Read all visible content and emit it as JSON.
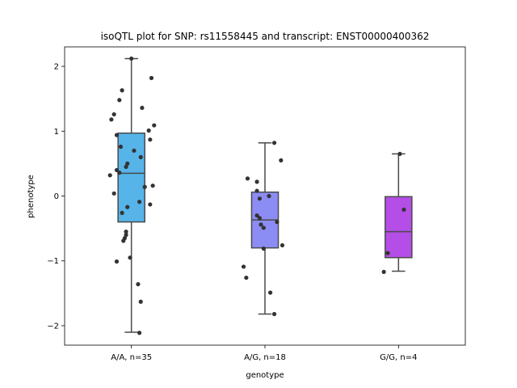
{
  "chart_data": {
    "type": "box",
    "title": "isoQTL plot for SNP: rs11558445 and transcript: ENST00000400362",
    "xlabel": "genotype",
    "ylabel": "phenotype",
    "ylim": [
      -2.3,
      2.3
    ],
    "yticks": [
      {
        "value": -2,
        "label": "−2"
      },
      {
        "value": -1,
        "label": "−1"
      },
      {
        "value": 0,
        "label": "0"
      },
      {
        "value": 1,
        "label": "1"
      },
      {
        "value": 2,
        "label": "2"
      }
    ],
    "categories": [
      "A/A, n=35",
      "A/G, n=18",
      "G/G, n=4"
    ],
    "box_colors": [
      "#56b4e9",
      "#8c8cf5",
      "#b44ee6"
    ],
    "boxes": [
      {
        "min": -2.1,
        "q1": -0.4,
        "median": 0.35,
        "q3": 0.97,
        "max": 2.12
      },
      {
        "min": -1.82,
        "q1": -0.8,
        "median": -0.37,
        "q3": 0.06,
        "max": 0.82
      },
      {
        "min": -1.16,
        "q1": -0.95,
        "median": -0.55,
        "q3": -0.01,
        "max": 0.65
      }
    ],
    "points": [
      [
        {
          "jitter": 0.0,
          "y": 2.12
        },
        {
          "jitter": 0.15,
          "y": 1.82
        },
        {
          "jitter": -0.07,
          "y": 1.63
        },
        {
          "jitter": -0.09,
          "y": 1.48
        },
        {
          "jitter": 0.08,
          "y": 1.36
        },
        {
          "jitter": -0.13,
          "y": 1.26
        },
        {
          "jitter": -0.15,
          "y": 1.18
        },
        {
          "jitter": 0.17,
          "y": 1.09
        },
        {
          "jitter": 0.13,
          "y": 1.01
        },
        {
          "jitter": -0.11,
          "y": 0.94
        },
        {
          "jitter": 0.14,
          "y": 0.87
        },
        {
          "jitter": -0.08,
          "y": 0.76
        },
        {
          "jitter": 0.02,
          "y": 0.7
        },
        {
          "jitter": 0.07,
          "y": 0.6
        },
        {
          "jitter": -0.03,
          "y": 0.5
        },
        {
          "jitter": -0.04,
          "y": 0.45
        },
        {
          "jitter": -0.11,
          "y": 0.4
        },
        {
          "jitter": -0.09,
          "y": 0.36
        },
        {
          "jitter": -0.16,
          "y": 0.32
        },
        {
          "jitter": 0.16,
          "y": 0.16
        },
        {
          "jitter": 0.1,
          "y": 0.14
        },
        {
          "jitter": -0.13,
          "y": 0.04
        },
        {
          "jitter": 0.06,
          "y": -0.09
        },
        {
          "jitter": 0.14,
          "y": -0.13
        },
        {
          "jitter": -0.03,
          "y": -0.17
        },
        {
          "jitter": -0.07,
          "y": -0.26
        },
        {
          "jitter": -0.04,
          "y": -0.55
        },
        {
          "jitter": -0.04,
          "y": -0.6
        },
        {
          "jitter": -0.05,
          "y": -0.65
        },
        {
          "jitter": -0.06,
          "y": -0.69
        },
        {
          "jitter": -0.01,
          "y": -0.95
        },
        {
          "jitter": -0.11,
          "y": -1.01
        },
        {
          "jitter": 0.05,
          "y": -1.36
        },
        {
          "jitter": 0.07,
          "y": -1.63
        },
        {
          "jitter": 0.06,
          "y": -2.11
        }
      ],
      [
        {
          "jitter": 0.07,
          "y": 0.82
        },
        {
          "jitter": 0.12,
          "y": 0.55
        },
        {
          "jitter": -0.13,
          "y": 0.27
        },
        {
          "jitter": -0.06,
          "y": 0.22
        },
        {
          "jitter": -0.06,
          "y": 0.08
        },
        {
          "jitter": 0.03,
          "y": 0.0
        },
        {
          "jitter": -0.04,
          "y": -0.04
        },
        {
          "jitter": -0.06,
          "y": -0.3
        },
        {
          "jitter": -0.04,
          "y": -0.34
        },
        {
          "jitter": 0.09,
          "y": -0.4
        },
        {
          "jitter": -0.03,
          "y": -0.44
        },
        {
          "jitter": -0.01,
          "y": -0.49
        },
        {
          "jitter": 0.13,
          "y": -0.76
        },
        {
          "jitter": -0.01,
          "y": -0.81
        },
        {
          "jitter": -0.16,
          "y": -1.09
        },
        {
          "jitter": -0.14,
          "y": -1.26
        },
        {
          "jitter": 0.04,
          "y": -1.49
        },
        {
          "jitter": 0.07,
          "y": -1.82
        }
      ],
      [
        {
          "jitter": 0.01,
          "y": 0.65
        },
        {
          "jitter": 0.04,
          "y": -0.21
        },
        {
          "jitter": -0.08,
          "y": -0.88
        },
        {
          "jitter": -0.11,
          "y": -1.17
        }
      ]
    ],
    "grid": false,
    "legend": "none"
  }
}
